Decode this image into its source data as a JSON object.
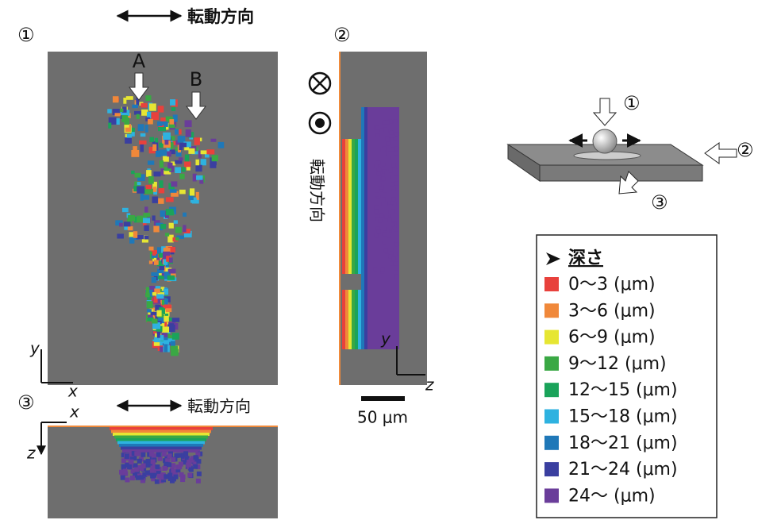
{
  "panels": [
    {
      "label": "①",
      "direction": "転動方向",
      "markers": [
        "A",
        "B"
      ],
      "axes": [
        "y",
        "x"
      ]
    },
    {
      "label": "②",
      "direction": "転動方向",
      "axes": [
        "y",
        "z"
      ],
      "scale_bar": "50 μm"
    },
    {
      "label": "③",
      "direction": "転動方向",
      "axes": [
        "x",
        "z"
      ]
    }
  ],
  "schematic": {
    "labels": [
      "①",
      "②",
      "③"
    ]
  },
  "legend": {
    "title": "深さ",
    "items": [
      {
        "label": "0～3 (μm)",
        "color": "#e8413c"
      },
      {
        "label": "3～6 (μm)",
        "color": "#f0883a"
      },
      {
        "label": "6～9 (μm)",
        "color": "#e6e633"
      },
      {
        "label": "9～12 (μm)",
        "color": "#3aa844"
      },
      {
        "label": "12～15 (μm)",
        "color": "#1aa35a"
      },
      {
        "label": "15～18 (μm)",
        "color": "#2eb2e0"
      },
      {
        "label": "18～21 (μm)",
        "color": "#1f78b8"
      },
      {
        "label": "21～24 (μm)",
        "color": "#3a3fa0"
      },
      {
        "label": "24～ (μm)",
        "color": "#6a3d9a"
      }
    ]
  }
}
